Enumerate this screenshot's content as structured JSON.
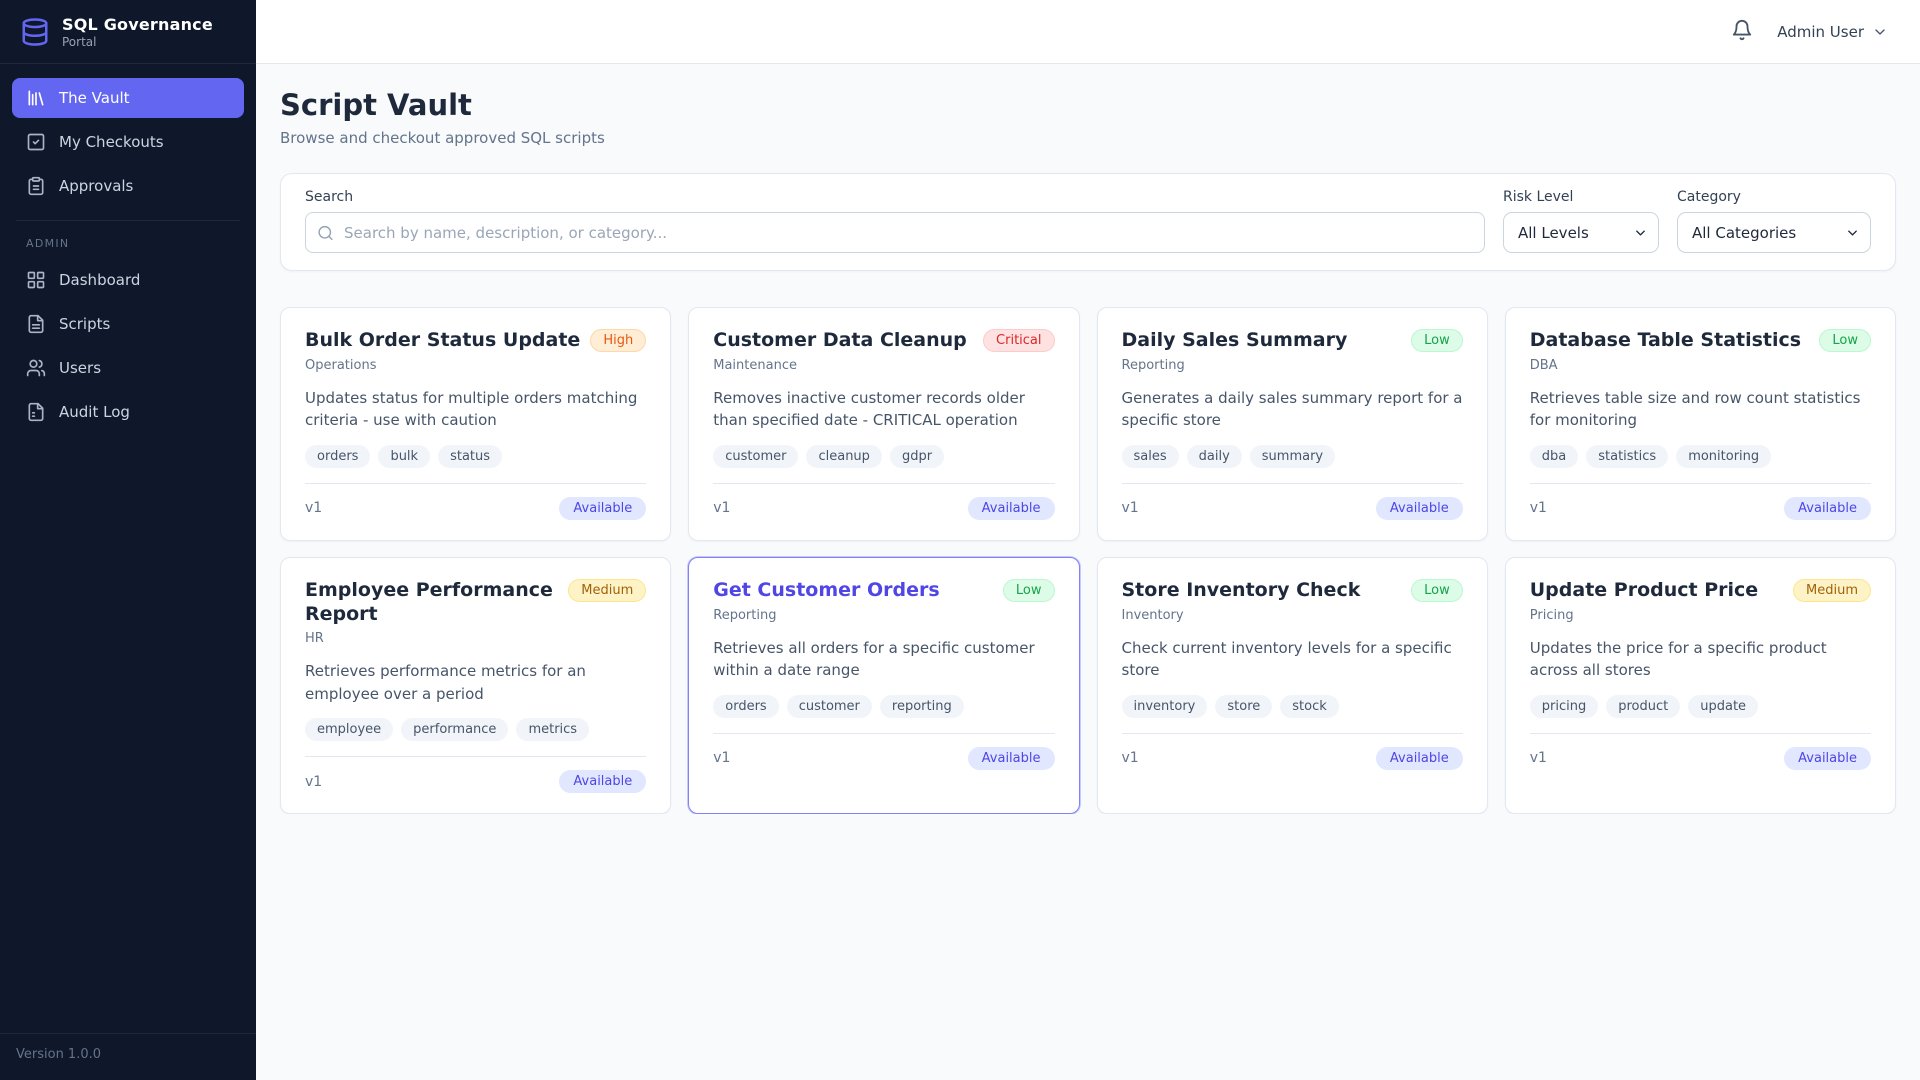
{
  "sidebar": {
    "logo_title": "SQL Governance",
    "logo_subtitle": "Portal",
    "logo_icon": "database-icon",
    "nav": [
      {
        "label": "The Vault",
        "icon": "library-icon",
        "active": true
      },
      {
        "label": "My Checkouts",
        "icon": "checkbox-icon",
        "active": false
      },
      {
        "label": "Approvals",
        "icon": "clipboard-icon",
        "active": false
      }
    ],
    "admin_section_label": "ADMIN",
    "admin_nav": [
      {
        "label": "Dashboard",
        "icon": "grid-icon",
        "active": false
      },
      {
        "label": "Scripts",
        "icon": "file-text-icon",
        "active": false
      },
      {
        "label": "Users",
        "icon": "users-icon",
        "active": false
      },
      {
        "label": "Audit Log",
        "icon": "file-icon",
        "active": false
      }
    ],
    "version": "Version 1.0.0"
  },
  "topbar": {
    "bell_icon": "bell-icon",
    "user_name": "Admin User",
    "user_caret_icon": "chevron-down-icon"
  },
  "page": {
    "title": "Script Vault",
    "subtitle": "Browse and checkout approved SQL scripts"
  },
  "filters": {
    "search_label": "Search",
    "search_placeholder": "Search by name, description, or category...",
    "search_value": "",
    "search_icon": "search-icon",
    "risk_label": "Risk Level",
    "risk_value": "All Levels",
    "category_label": "Category",
    "category_value": "All Categories"
  },
  "cards": [
    {
      "title": "Bulk Order Status Update",
      "risk": "High",
      "category": "Operations",
      "description": "Updates status for multiple orders matching criteria - use with caution",
      "tags": [
        "orders",
        "bulk",
        "status"
      ],
      "version": "v1",
      "status": "Available",
      "highlighted": false
    },
    {
      "title": "Customer Data Cleanup",
      "risk": "Critical",
      "category": "Maintenance",
      "description": "Removes inactive customer records older than specified date - CRITICAL operation",
      "tags": [
        "customer",
        "cleanup",
        "gdpr"
      ],
      "version": "v1",
      "status": "Available",
      "highlighted": false
    },
    {
      "title": "Daily Sales Summary",
      "risk": "Low",
      "category": "Reporting",
      "description": "Generates a daily sales summary report for a specific store",
      "tags": [
        "sales",
        "daily",
        "summary"
      ],
      "version": "v1",
      "status": "Available",
      "highlighted": false
    },
    {
      "title": "Database Table Statistics",
      "risk": "Low",
      "category": "DBA",
      "description": "Retrieves table size and row count statistics for monitoring",
      "tags": [
        "dba",
        "statistics",
        "monitoring"
      ],
      "version": "v1",
      "status": "Available",
      "highlighted": false
    },
    {
      "title": "Employee Performance Report",
      "risk": "Medium",
      "category": "HR",
      "description": "Retrieves performance metrics for an employee over a period",
      "tags": [
        "employee",
        "performance",
        "metrics"
      ],
      "version": "v1",
      "status": "Available",
      "highlighted": false
    },
    {
      "title": "Get Customer Orders",
      "risk": "Low",
      "category": "Reporting",
      "description": "Retrieves all orders for a specific customer within a date range",
      "tags": [
        "orders",
        "customer",
        "reporting"
      ],
      "version": "v1",
      "status": "Available",
      "highlighted": true
    },
    {
      "title": "Store Inventory Check",
      "risk": "Low",
      "category": "Inventory",
      "description": "Check current inventory levels for a specific store",
      "tags": [
        "inventory",
        "store",
        "stock"
      ],
      "version": "v1",
      "status": "Available",
      "highlighted": false
    },
    {
      "title": "Update Product Price",
      "risk": "Medium",
      "category": "Pricing",
      "description": "Updates the price for a specific product across all stores",
      "tags": [
        "pricing",
        "product",
        "update"
      ],
      "version": "v1",
      "status": "Available",
      "highlighted": false
    }
  ],
  "colors": {
    "accent": "#6366f1",
    "sidebar_bg": "#0f172a",
    "page_bg": "#f8fafc",
    "risk_high": {
      "bg": "#ffedd5",
      "text": "#ea580c"
    },
    "risk_critical": {
      "bg": "#fee2e2",
      "text": "#dc2626"
    },
    "risk_low": {
      "bg": "#dcfce7",
      "text": "#16a34a"
    },
    "risk_medium": {
      "bg": "#fef3c7",
      "text": "#a16207"
    },
    "status_available": {
      "bg": "#e0e7ff",
      "text": "#4f46e5"
    }
  }
}
